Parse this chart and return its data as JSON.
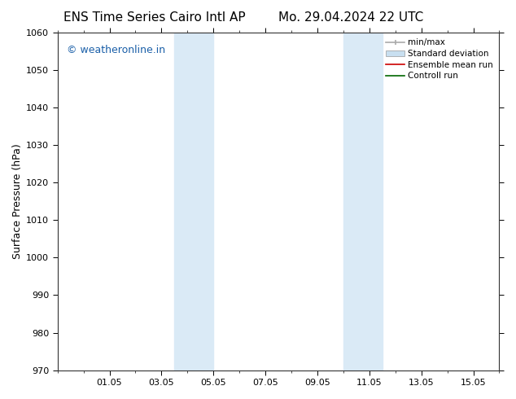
{
  "title_left": "ENS Time Series Cairo Intl AP",
  "title_right": "Mo. 29.04.2024 22 UTC",
  "ylabel": "Surface Pressure (hPa)",
  "ylim": [
    970,
    1060
  ],
  "yticks": [
    970,
    980,
    990,
    1000,
    1010,
    1020,
    1030,
    1040,
    1050,
    1060
  ],
  "xtick_labels": [
    "01.05",
    "03.05",
    "05.05",
    "07.05",
    "09.05",
    "11.05",
    "13.05",
    "15.05"
  ],
  "xtick_positions": [
    2,
    4,
    6,
    8,
    10,
    12,
    14,
    16
  ],
  "xlim": [
    0,
    17
  ],
  "shaded_bands": [
    {
      "x_start": 4.5,
      "x_end": 6.0
    },
    {
      "x_start": 11.0,
      "x_end": 12.5
    }
  ],
  "shaded_color": "#daeaf6",
  "watermark_text": "© weatheronline.in",
  "watermark_color": "#1a5fa8",
  "legend_items": [
    {
      "label": "min/max",
      "type": "minmax",
      "color": "#aaaaaa"
    },
    {
      "label": "Standard deviation",
      "type": "band",
      "color": "#c8dff0"
    },
    {
      "label": "Ensemble mean run",
      "type": "line",
      "color": "#cc0000"
    },
    {
      "label": "Controll run",
      "type": "line",
      "color": "#006600"
    }
  ],
  "background_color": "#ffffff",
  "spine_color": "#333333",
  "title_fontsize": 11,
  "axis_label_fontsize": 9,
  "tick_fontsize": 8,
  "watermark_fontsize": 9,
  "legend_fontsize": 7.5
}
